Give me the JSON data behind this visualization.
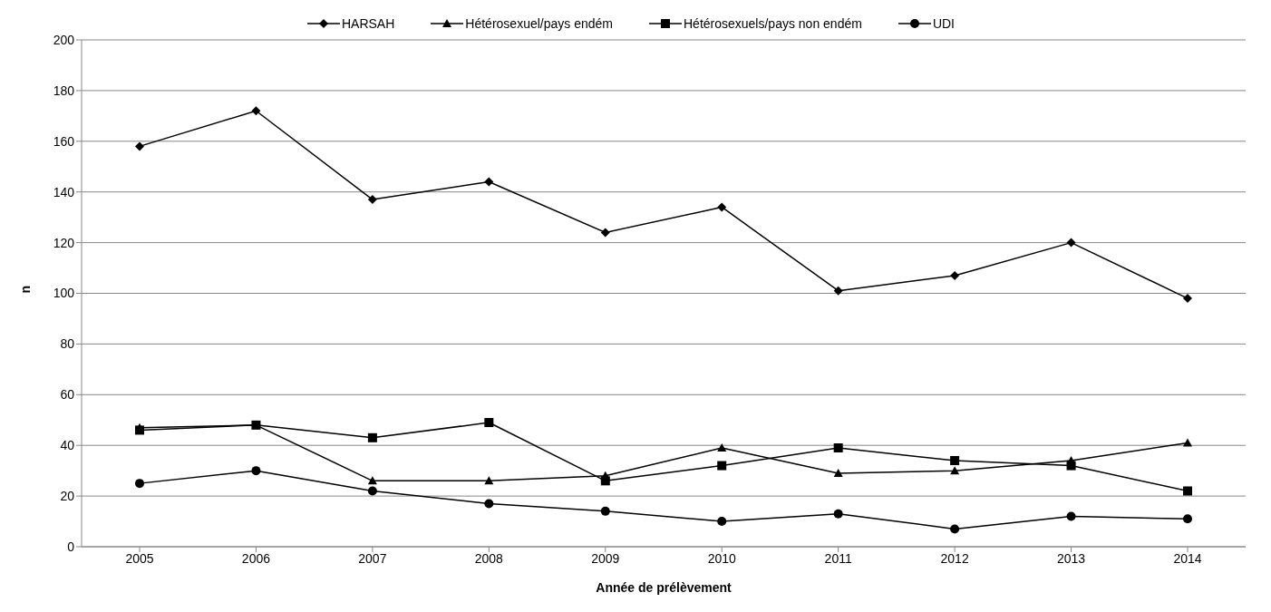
{
  "chart_data": {
    "type": "line",
    "xlabel": "Année de prélèvement",
    "ylabel": "n",
    "categories": [
      "2005",
      "2006",
      "2007",
      "2008",
      "2009",
      "2010",
      "2011",
      "2012",
      "2013",
      "2014"
    ],
    "series": [
      {
        "name": "HARSAH",
        "color": "#000000",
        "marker": "diamond",
        "values": [
          158,
          172,
          137,
          144,
          124,
          134,
          101,
          107,
          120,
          98
        ]
      },
      {
        "name": "Hétérosexuel/pays endém",
        "color": "#000000",
        "marker": "triangle",
        "values": [
          47,
          48,
          26,
          26,
          28,
          39,
          29,
          30,
          34,
          41
        ]
      },
      {
        "name": "Hétérosexuels/pays non endém",
        "color": "#000000",
        "marker": "square",
        "values": [
          46,
          48,
          43,
          49,
          26,
          32,
          39,
          34,
          32,
          22
        ]
      },
      {
        "name": "UDI",
        "color": "#000000",
        "marker": "circle",
        "values": [
          25,
          30,
          22,
          17,
          14,
          10,
          13,
          7,
          12,
          11
        ]
      }
    ],
    "ylim": [
      0,
      200
    ],
    "yticks": [
      0,
      20,
      40,
      60,
      80,
      100,
      120,
      140,
      160,
      180,
      200
    ],
    "grid": "y",
    "legend": "top",
    "line_style": "solid"
  }
}
